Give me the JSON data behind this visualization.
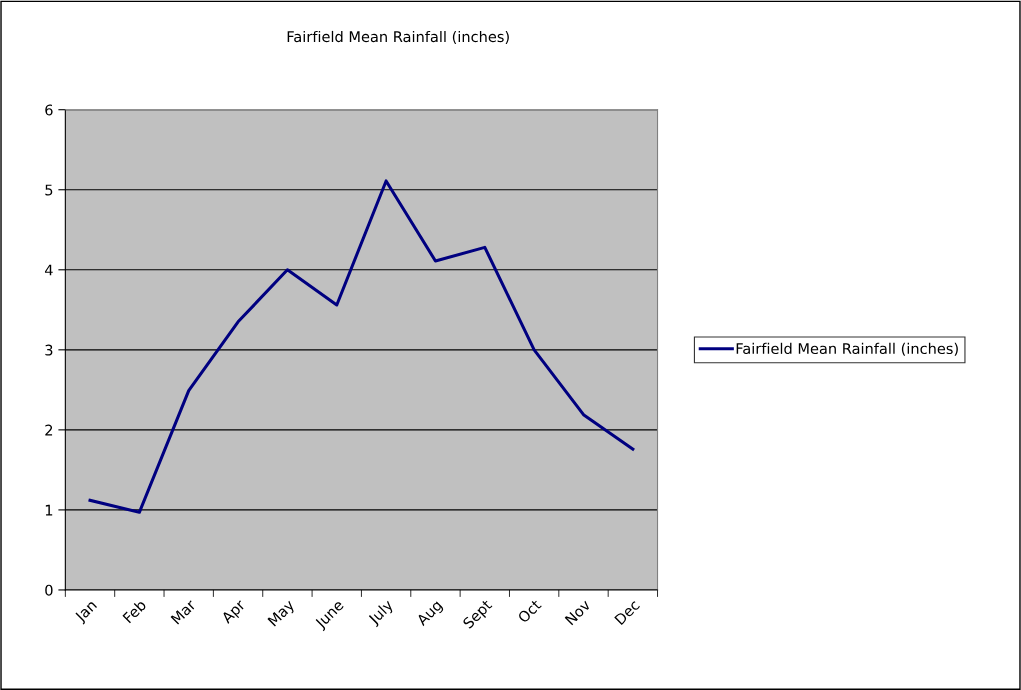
{
  "chart_data": {
    "type": "line",
    "title": "Fairfield Mean Rainfall (inches)",
    "categories": [
      "Jan",
      "Feb",
      "Mar",
      "Apr",
      "May",
      "June",
      "July",
      "Aug",
      "Sept",
      "Oct",
      "Nov",
      "Dec"
    ],
    "series": [
      {
        "name": "Fairfield Mean Rainfall (inches)",
        "color": "#000080",
        "values": [
          1.12,
          0.97,
          2.49,
          3.35,
          4.0,
          3.56,
          5.11,
          4.11,
          4.28,
          3.0,
          2.19,
          1.76
        ]
      }
    ],
    "ylim": [
      0,
      6
    ],
    "yticks": [
      0,
      1,
      2,
      3,
      4,
      5,
      6
    ],
    "grid": "y",
    "legend": "right",
    "marker": "none",
    "line_style": "solid"
  }
}
